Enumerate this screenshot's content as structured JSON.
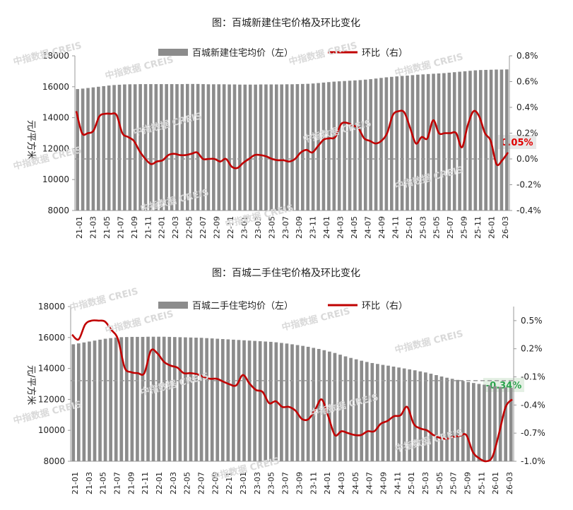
{
  "chart_data": [
    {
      "type": "bar+line",
      "title": "图：百城新建住宅价格及环比变化",
      "legend_bar": "百城新建住宅均价（左）",
      "legend_line": "环比（右）",
      "ylabel": "元/平方米",
      "ylim_left": [
        8000,
        18000
      ],
      "left_ticks": [
        "18000",
        "16000",
        "14000",
        "12000",
        "10000",
        "8000"
      ],
      "ylim_right": [
        -0.4,
        0.8
      ],
      "right_ticks": [
        "0.8%",
        "0.6%",
        "0.4%",
        "0.2%",
        "0.0%",
        "-0.2%",
        "-0.4%"
      ],
      "xticks": [
        "21-01",
        "21-03",
        "21-05",
        "21-07",
        "21-09",
        "21-11",
        "22-01",
        "22-03",
        "22-05",
        "22-07",
        "22-09",
        "22-11",
        "23-01",
        "23-03",
        "23-05",
        "23-07",
        "23-09",
        "23-11",
        "24-01",
        "24-03",
        "24-05",
        "24-07",
        "24-09",
        "24-11",
        "25-01",
        "25-03",
        "25-05",
        "25-07",
        "25-09",
        "25-11",
        "26-01",
        "26-03"
      ],
      "bar_values": [
        15850,
        15880,
        15920,
        15960,
        16000,
        16040,
        16080,
        16110,
        16130,
        16150,
        16160,
        16160,
        16170,
        16170,
        16170,
        16170,
        16170,
        16170,
        16170,
        16170,
        16170,
        16180,
        16180,
        16180,
        16170,
        16160,
        16160,
        16160,
        16160,
        16150,
        16150,
        16140,
        16140,
        16140,
        16140,
        16150,
        16150,
        16150,
        16150,
        16150,
        16160,
        16160,
        16170,
        16180,
        16190,
        16210,
        16240,
        16270,
        16300,
        16330,
        16350,
        16370,
        16390,
        16410,
        16430,
        16460,
        16490,
        16530,
        16570,
        16610,
        16640,
        16670,
        16700,
        16720,
        16750,
        16780,
        16800,
        16820,
        16840,
        16860,
        16880,
        16910,
        16940,
        16970,
        17000,
        17030,
        17060,
        17080,
        17090,
        17100,
        17110,
        17110,
        17120
      ],
      "line_values": [
        0.37,
        0.2,
        0.2,
        0.22,
        0.33,
        0.35,
        0.35,
        0.34,
        0.2,
        0.17,
        0.14,
        0.06,
        0.0,
        -0.04,
        -0.02,
        -0.01,
        0.03,
        0.04,
        0.03,
        0.03,
        0.04,
        0.05,
        0.0,
        0.0,
        0.0,
        -0.02,
        0.0,
        -0.06,
        -0.07,
        -0.03,
        0.0,
        0.03,
        0.03,
        0.02,
        0.0,
        -0.01,
        -0.01,
        -0.02,
        0.0,
        0.05,
        0.07,
        0.05,
        0.1,
        0.15,
        0.16,
        0.17,
        0.27,
        0.28,
        0.26,
        0.24,
        0.16,
        0.14,
        0.12,
        0.14,
        0.2,
        0.34,
        0.37,
        0.36,
        0.24,
        0.12,
        0.17,
        0.16,
        0.3,
        0.2,
        0.2,
        0.2,
        0.2,
        0.09,
        0.26,
        0.37,
        0.33,
        0.2,
        0.14,
        -0.04,
        -0.01,
        0.05
      ],
      "callout": "0.05%"
    },
    {
      "type": "bar+line",
      "title": "图：百城二手住宅价格及环比变化",
      "legend_bar": "百城二手住宅均价（左）",
      "legend_line": "环比（右）",
      "ylabel": "元/平方米",
      "ylim_left": [
        8000,
        18000
      ],
      "left_ticks": [
        "18000",
        "16000",
        "14000",
        "12000",
        "10000",
        "8000"
      ],
      "ylim_right": [
        -1.0,
        0.65
      ],
      "right_ticks": [
        "0.5%",
        "0.2%",
        "-0.1%",
        "-0.4%",
        "-0.7%",
        "-1.0%"
      ],
      "xticks": [
        "21-01",
        "21-03",
        "21-05",
        "21-07",
        "21-09",
        "21-11",
        "22-01",
        "22-03",
        "22-05",
        "22-07",
        "22-09",
        "22-11",
        "23-01",
        "23-03",
        "23-05",
        "23-07",
        "23-09",
        "23-11",
        "24-01",
        "24-03",
        "24-05",
        "24-07",
        "24-09",
        "24-11",
        "25-01",
        "25-03",
        "25-05",
        "25-07",
        "25-09",
        "25-11",
        "26-01",
        "26-03"
      ],
      "bar_values": [
        15560,
        15620,
        15680,
        15740,
        15800,
        15860,
        15920,
        15960,
        16000,
        16020,
        16030,
        16040,
        16040,
        16040,
        16050,
        16050,
        16050,
        16050,
        16040,
        16030,
        16020,
        16010,
        16000,
        15990,
        15980,
        15960,
        15940,
        15920,
        15900,
        15880,
        15860,
        15840,
        15820,
        15800,
        15780,
        15760,
        15740,
        15720,
        15690,
        15650,
        15610,
        15560,
        15510,
        15460,
        15400,
        15330,
        15260,
        15180,
        15090,
        15000,
        14890,
        14780,
        14680,
        14590,
        14500,
        14420,
        14350,
        14290,
        14230,
        14180,
        14120,
        14060,
        14000,
        13940,
        13880,
        13810,
        13740,
        13660,
        13570,
        13480,
        13400,
        13330,
        13260,
        13190,
        13120,
        13060,
        13000,
        12950,
        12900,
        12850,
        12810,
        12780,
        12750
      ],
      "line_values": [
        0.35,
        0.3,
        0.46,
        0.5,
        0.5,
        0.49,
        0.4,
        0.3,
        0.0,
        -0.05,
        -0.06,
        -0.06,
        0.18,
        0.15,
        0.06,
        0.02,
        0.0,
        -0.06,
        -0.06,
        -0.07,
        -0.1,
        -0.12,
        -0.12,
        -0.15,
        -0.18,
        -0.19,
        -0.08,
        -0.17,
        -0.24,
        -0.26,
        -0.38,
        -0.36,
        -0.42,
        -0.42,
        -0.46,
        -0.55,
        -0.55,
        -0.45,
        -0.34,
        -0.52,
        -0.72,
        -0.68,
        -0.7,
        -0.72,
        -0.72,
        -0.68,
        -0.68,
        -0.6,
        -0.57,
        -0.52,
        -0.51,
        -0.42,
        -0.6,
        -0.65,
        -0.67,
        -0.72,
        -0.75,
        -0.76,
        -0.74,
        -0.73,
        -0.72,
        -0.9,
        -0.97,
        -1.0,
        -0.95,
        -0.7,
        -0.42,
        -0.34
      ],
      "callout": "-0.34%"
    }
  ],
  "watermark_text": "中指数据 CREIS",
  "colors": {
    "bar": "#8c8c8c",
    "line": "#c00000",
    "callout1_text": "#e00000",
    "callout1_bg": "#e8e8e8",
    "callout2_text": "#2ba24c",
    "callout2_bg": "#e4f0e4",
    "dash": "#9a9a9a"
  }
}
